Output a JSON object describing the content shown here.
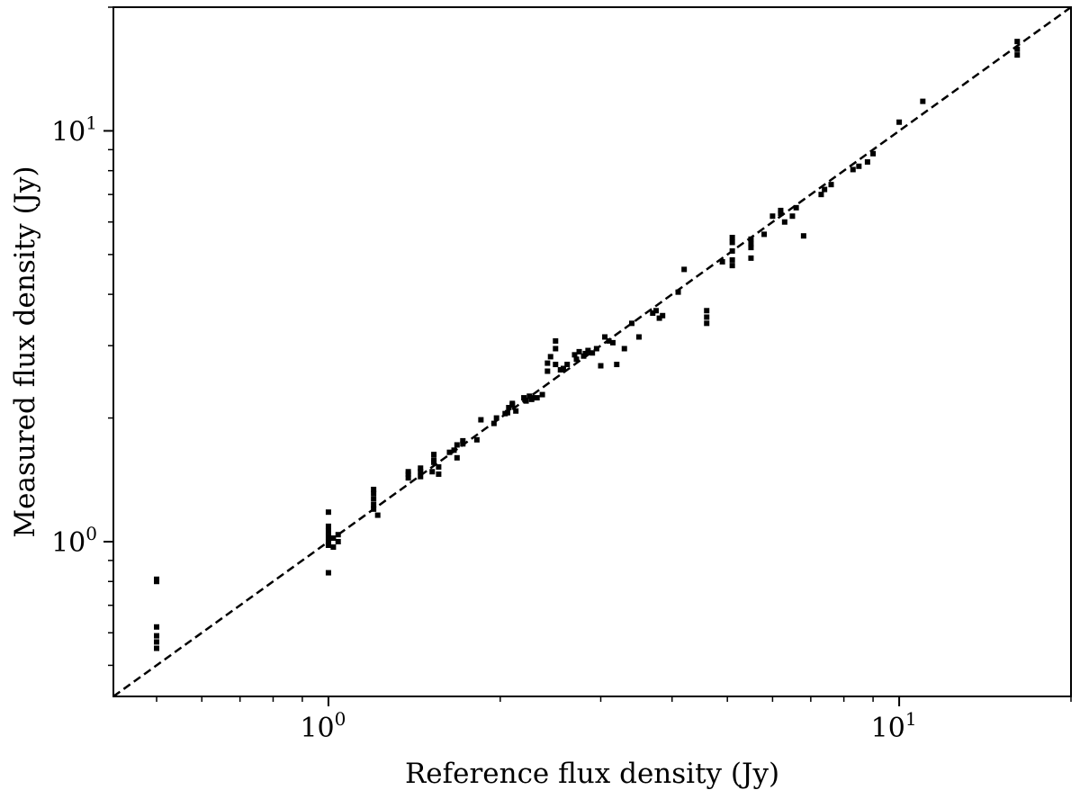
{
  "chart_data": {
    "type": "scatter",
    "title": "",
    "xlabel": "Reference flux density (Jy)",
    "ylabel": "Measured flux density (Jy)",
    "xscale": "log",
    "yscale": "log",
    "xlim": [
      0.42,
      20
    ],
    "ylim": [
      0.42,
      20
    ],
    "grid": false,
    "legend": "none",
    "x_ticks": [
      {
        "base": "10",
        "exp": "0",
        "value": 1
      },
      {
        "base": "10",
        "exp": "1",
        "value": 10
      }
    ],
    "y_ticks": [
      {
        "base": "10",
        "exp": "0",
        "value": 1
      },
      {
        "base": "10",
        "exp": "1",
        "value": 10
      }
    ],
    "reference_line": {
      "style": "dashed",
      "x": [
        0.42,
        20
      ],
      "y": [
        0.42,
        20
      ]
    },
    "marker_color": "#000000",
    "points": [
      [
        0.5,
        0.55
      ],
      [
        0.5,
        0.57
      ],
      [
        0.5,
        0.59
      ],
      [
        0.5,
        0.62
      ],
      [
        0.5,
        0.8
      ],
      [
        0.5,
        0.81
      ],
      [
        1.0,
        0.84
      ],
      [
        1.0,
        0.98
      ],
      [
        1.0,
        1.0
      ],
      [
        1.0,
        1.03
      ],
      [
        1.0,
        1.06
      ],
      [
        1.0,
        1.09
      ],
      [
        1.0,
        1.18
      ],
      [
        1.02,
        0.97
      ],
      [
        1.02,
        1.02
      ],
      [
        1.04,
        1.0
      ],
      [
        1.04,
        1.04
      ],
      [
        1.2,
        1.2
      ],
      [
        1.2,
        1.23
      ],
      [
        1.2,
        1.27
      ],
      [
        1.2,
        1.31
      ],
      [
        1.2,
        1.34
      ],
      [
        1.22,
        1.16
      ],
      [
        1.38,
        1.43
      ],
      [
        1.38,
        1.46
      ],
      [
        1.38,
        1.48
      ],
      [
        1.45,
        1.44
      ],
      [
        1.45,
        1.48
      ],
      [
        1.45,
        1.51
      ],
      [
        1.52,
        1.48
      ],
      [
        1.53,
        1.56
      ],
      [
        1.53,
        1.58
      ],
      [
        1.53,
        1.63
      ],
      [
        1.56,
        1.46
      ],
      [
        1.56,
        1.52
      ],
      [
        1.63,
        1.65
      ],
      [
        1.66,
        1.67
      ],
      [
        1.68,
        1.6
      ],
      [
        1.68,
        1.72
      ],
      [
        1.72,
        1.73
      ],
      [
        1.72,
        1.76
      ],
      [
        1.82,
        1.77
      ],
      [
        1.85,
        1.98
      ],
      [
        1.95,
        1.94
      ],
      [
        1.97,
        2.0
      ],
      [
        2.04,
        2.05
      ],
      [
        2.06,
        2.06
      ],
      [
        2.07,
        2.12
      ],
      [
        2.1,
        2.15
      ],
      [
        2.1,
        2.17
      ],
      [
        2.13,
        2.08
      ],
      [
        2.2,
        2.24
      ],
      [
        2.22,
        2.2
      ],
      [
        2.25,
        2.26
      ],
      [
        2.27,
        2.22
      ],
      [
        2.28,
        2.24
      ],
      [
        2.32,
        2.24
      ],
      [
        2.37,
        2.28
      ],
      [
        2.42,
        2.6
      ],
      [
        2.42,
        2.72
      ],
      [
        2.45,
        2.82
      ],
      [
        2.5,
        2.7
      ],
      [
        2.5,
        2.95
      ],
      [
        2.5,
        3.08
      ],
      [
        2.55,
        2.62
      ],
      [
        2.58,
        2.64
      ],
      [
        2.62,
        2.7
      ],
      [
        2.7,
        2.85
      ],
      [
        2.72,
        2.78
      ],
      [
        2.75,
        2.9
      ],
      [
        2.8,
        2.83
      ],
      [
        2.82,
        2.87
      ],
      [
        2.85,
        2.92
      ],
      [
        2.9,
        2.88
      ],
      [
        2.95,
        2.95
      ],
      [
        3.0,
        2.68
      ],
      [
        3.05,
        3.15
      ],
      [
        3.1,
        3.08
      ],
      [
        3.15,
        3.05
      ],
      [
        3.2,
        2.7
      ],
      [
        3.3,
        2.95
      ],
      [
        3.4,
        3.4
      ],
      [
        3.5,
        3.15
      ],
      [
        3.7,
        3.6
      ],
      [
        3.75,
        3.65
      ],
      [
        3.8,
        3.5
      ],
      [
        3.85,
        3.55
      ],
      [
        4.1,
        4.05
      ],
      [
        4.2,
        4.6
      ],
      [
        4.6,
        3.4
      ],
      [
        4.6,
        3.52
      ],
      [
        4.6,
        3.65
      ],
      [
        4.9,
        4.8
      ],
      [
        5.1,
        4.7
      ],
      [
        5.1,
        4.85
      ],
      [
        5.1,
        5.1
      ],
      [
        5.1,
        5.35
      ],
      [
        5.1,
        5.5
      ],
      [
        5.5,
        5.2
      ],
      [
        5.5,
        5.3
      ],
      [
        5.5,
        5.45
      ],
      [
        5.5,
        4.9
      ],
      [
        5.8,
        5.6
      ],
      [
        6.0,
        6.2
      ],
      [
        6.2,
        6.3
      ],
      [
        6.2,
        6.4
      ],
      [
        6.3,
        6.0
      ],
      [
        6.5,
        6.2
      ],
      [
        6.6,
        6.5
      ],
      [
        6.8,
        5.55
      ],
      [
        7.3,
        7.0
      ],
      [
        7.4,
        7.2
      ],
      [
        7.6,
        7.4
      ],
      [
        8.3,
        8.05
      ],
      [
        8.5,
        8.2
      ],
      [
        8.8,
        8.4
      ],
      [
        9.0,
        8.8
      ],
      [
        10.0,
        10.5
      ],
      [
        11.0,
        11.8
      ],
      [
        16.1,
        15.3
      ],
      [
        16.1,
        15.8
      ],
      [
        16.1,
        16.5
      ]
    ]
  }
}
